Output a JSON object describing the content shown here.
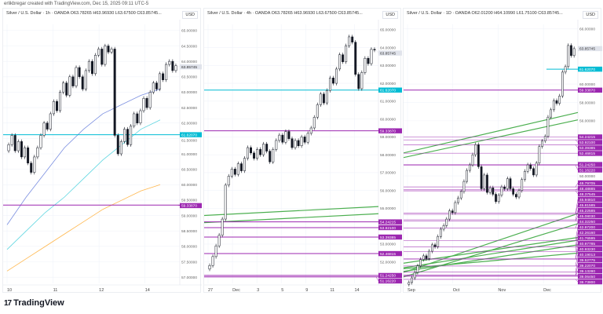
{
  "credit": "erlikbregar created with TradingView.com, Dec 15, 2025 09:11 UTC-5",
  "footer": {
    "brand": "TradingView",
    "logo": "tradingview-logo"
  },
  "colors": {
    "up": "#089981",
    "down": "#131722",
    "candle": "#131722",
    "support": "#9c27b0",
    "current": "#00bcd4",
    "trend": "#4caf50",
    "ma1": "#7b8fe0",
    "ma2": "#5ed6e0",
    "ma3": "#ffb74d"
  },
  "chart_data": [
    {
      "type": "candlestick",
      "title": "Silver / U.S. Dollar · 1h · OANDA  O63.78265  H63.96930  L63.67500  C63.85745...",
      "currency": "USD",
      "ylim": [
        56.8,
        65.2
      ],
      "yticks": [
        "65.00000",
        "64.50000",
        "64.00000",
        "63.50000",
        "63.00000",
        "62.50000",
        "62.00000",
        "61.50000",
        "61.00000",
        "60.50000",
        "60.00000",
        "59.50000",
        "59.00000",
        "58.50000",
        "58.00000",
        "57.50000",
        "57.00000"
      ],
      "xticks": [
        "10",
        "11",
        "12",
        "14"
      ],
      "closes": [
        61.3,
        61.6,
        61.1,
        61.4,
        60.9,
        61.2,
        60.7,
        60.4,
        60.9,
        61.2,
        61.6,
        62.0,
        61.8,
        62.3,
        62.7,
        62.4,
        63.0,
        63.3,
        62.9,
        63.5,
        63.2,
        63.8,
        63.5,
        63.1,
        63.7,
        64.0,
        63.6,
        64.2,
        64.4,
        63.9,
        64.5,
        64.3,
        64.4,
        61.6,
        61.0,
        61.4,
        61.8,
        61.3,
        61.9,
        62.3,
        62.0,
        62.4,
        62.8,
        62.5,
        63.0,
        63.3,
        63.1,
        63.6,
        63.4,
        63.9,
        64.0,
        63.7,
        63.86
      ],
      "hlines": [
        {
          "value": 61.6207,
          "label": "61.62070",
          "color": "#00bcd4"
        },
        {
          "value": 59.3387,
          "label": "59.33870",
          "color": "#9c27b0"
        }
      ],
      "last": {
        "value": 63.85745,
        "label": "63.85745"
      },
      "mas": [
        {
          "values": [
            58.7,
            59.6,
            60.4,
            61.2,
            61.8,
            62.3,
            62.6,
            62.9,
            63.1
          ],
          "color": "#7b8fe0"
        },
        {
          "values": [
            57.9,
            58.5,
            59.1,
            59.6,
            60.2,
            60.8,
            61.3,
            61.8,
            62.1
          ],
          "color": "#5ed6e0"
        },
        {
          "values": [
            57.2,
            57.6,
            58.0,
            58.4,
            58.8,
            59.2,
            59.5,
            59.8,
            60.0
          ],
          "color": "#ffb74d"
        }
      ]
    },
    {
      "type": "candlestick",
      "title": "Silver / U.S. Dollar · 4h · OANDA  O63.78265  H63.96930  L63.67500  C63.85745...",
      "currency": "USD",
      "ylim": [
        50.8,
        65.3
      ],
      "yticks": [
        "65.00000",
        "64.00000",
        "63.00000",
        "62.00000",
        "61.00000",
        "60.00000",
        "59.00000",
        "58.00000",
        "57.00000",
        "56.00000",
        "55.00000",
        "53.00000",
        "52.00000"
      ],
      "xticks": [
        "27",
        "Dec",
        "3",
        "5",
        "9",
        "11",
        "14"
      ],
      "closes": [
        51.8,
        52.3,
        52.9,
        53.5,
        54.4,
        56.3,
        56.8,
        57.2,
        56.9,
        57.5,
        57.1,
        57.8,
        58.4,
        58.1,
        57.8,
        58.3,
        58.0,
        58.6,
        58.2,
        57.6,
        58.3,
        58.8,
        59.1,
        58.7,
        59.3,
        58.9,
        58.4,
        58.8,
        58.5,
        59.0,
        58.7,
        59.2,
        59.5,
        60.1,
        60.8,
        61.4,
        60.9,
        61.6,
        62.3,
        62.0,
        62.8,
        63.6,
        63.2,
        64.1,
        64.6,
        64.3,
        62.5,
        61.7,
        62.6,
        63.4,
        63.1,
        63.9,
        63.86
      ],
      "hlines": [
        {
          "value": 61.6207,
          "label": "61.62070",
          "color": "#00bcd4"
        },
        {
          "value": 59.3387,
          "label": "59.33870",
          "color": "#9c27b0"
        },
        {
          "value": 54.24215,
          "label": "54.24215",
          "color": "#9c27b0"
        },
        {
          "value": 53.921,
          "label": "53.92100",
          "color": "#9c27b0"
        },
        {
          "value": 53.39385,
          "label": "53.39385",
          "color": "#9c27b0"
        },
        {
          "value": 52.46815,
          "label": "52.46815",
          "color": "#9c27b0"
        },
        {
          "value": 51.2425,
          "label": "51.24250",
          "color": "#9c27b0"
        },
        {
          "value": 51.1622,
          "label": "51.16220",
          "color": "#9c27b0"
        }
      ],
      "last": {
        "value": 63.85745,
        "label": "63.85745"
      },
      "trends": [
        [
          54.6,
          55.1
        ],
        [
          54.2,
          54.7
        ]
      ]
    },
    {
      "type": "candlestick",
      "title": "Silver / U.S. Dollar · 1D · OANDA  O62.01200  H64.10990  L61.75100  C63.85745...",
      "currency": "USD",
      "ylim": [
        38.3,
        66.5
      ],
      "yticks": [
        "66.00000",
        "60.00000",
        "58.00000",
        "56.00000",
        "50.00000"
      ],
      "xticks": [
        "Sep",
        "Oct",
        "Nov",
        "Dec"
      ],
      "closes": [
        38.4,
        38.9,
        39.5,
        40.2,
        40.9,
        41.3,
        41.0,
        41.8,
        42.5,
        42.3,
        43.4,
        44.2,
        44.6,
        45.3,
        46.2,
        46.0,
        47.1,
        47.6,
        48.3,
        49.4,
        50.6,
        51.2,
        52.3,
        53.4,
        51.0,
        48.6,
        50.1,
        48.2,
        48.7,
        48.0,
        47.2,
        47.9,
        48.8,
        48.6,
        49.7,
        48.6,
        48.0,
        47.7,
        48.4,
        49.6,
        50.5,
        51.2,
        50.8,
        50.1,
        51.4,
        53.2,
        53.8,
        54.3,
        56.4,
        57.2,
        58.2,
        57.9,
        58.7,
        61.3,
        61.9,
        64.2,
        63.1,
        63.86
      ],
      "hlines": [
        {
          "value": 59.3387,
          "label": "59.33870",
          "color": "#9c27b0"
        },
        {
          "value": 54.24215,
          "label": "54.24215"
        },
        {
          "value": 53.921,
          "label": "53.92100"
        },
        {
          "value": 53.39385,
          "label": "53.39385"
        },
        {
          "value": 52.46815,
          "label": "52.46815"
        },
        {
          "value": 51.2425,
          "label": "51.24250"
        },
        {
          "value": 51.1622,
          "label": "51.16220"
        },
        {
          "value": 48.79705,
          "label": "48.79705"
        },
        {
          "value": 48.48885,
          "label": "48.48885"
        },
        {
          "value": 48.37545,
          "label": "48.37545"
        },
        {
          "value": 45.9481,
          "label": "45.94810"
        },
        {
          "value": 45.81585,
          "label": "45.81585"
        },
        {
          "value": 45.22585,
          "label": "45.22585"
        },
        {
          "value": 45.0803,
          "label": "45.08030"
        },
        {
          "value": 44.3225,
          "label": "44.32250"
        },
        {
          "value": 42.972,
          "label": "42.97200"
        },
        {
          "value": 42.2616,
          "label": "42.26160"
        },
        {
          "value": 41.76595,
          "label": "41.76595"
        },
        {
          "value": 40.97785,
          "label": "40.97785"
        },
        {
          "value": 40.9323,
          "label": "40.93230"
        },
        {
          "value": 40.19013,
          "label": "40.19013"
        },
        {
          "value": 39.52775,
          "label": "39.52775"
        },
        {
          "value": 39.2207,
          "label": "39.22070"
        },
        {
          "value": 39.1328,
          "label": "39.13280"
        },
        {
          "value": 39.0645,
          "label": "39.06450"
        },
        {
          "value": 38.738,
          "label": "38.73800"
        }
      ],
      "current": {
        "value": 61.6207,
        "label": "61.62070"
      },
      "last": {
        "value": 63.85745,
        "label": "63.85745"
      },
      "trends": [
        [
          52.5,
          56.9
        ],
        [
          52.0,
          56.1
        ],
        [
          39.5,
          45.9
        ],
        [
          39.0,
          44.8
        ],
        [
          40.5,
          43.3
        ],
        [
          40.0,
          43.0
        ],
        [
          39.6,
          42.5
        ],
        [
          39.9,
          41.6
        ]
      ]
    }
  ]
}
